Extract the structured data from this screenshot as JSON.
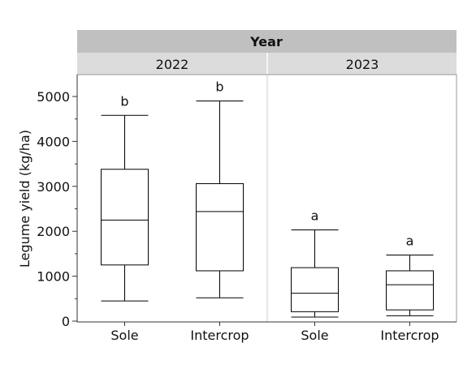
{
  "chart_data": {
    "type": "box",
    "facet_title": "Year",
    "ylabel": "Legume yield (kg/ha)",
    "ylim": [
      0,
      5500
    ],
    "yticks": [
      0,
      1000,
      2000,
      3000,
      4000,
      5000
    ],
    "categories": [
      "Sole",
      "Intercrop"
    ],
    "panels": [
      {
        "label": "2022",
        "boxes": [
          {
            "category": "Sole",
            "min": 450,
            "q1": 1250,
            "median": 2250,
            "q3": 3380,
            "max": 4580,
            "letter": "b"
          },
          {
            "category": "Intercrop",
            "min": 520,
            "q1": 1120,
            "median": 2440,
            "q3": 3060,
            "max": 4900,
            "letter": "b"
          }
        ]
      },
      {
        "label": "2023",
        "boxes": [
          {
            "category": "Sole",
            "min": 90,
            "q1": 210,
            "median": 620,
            "q3": 1190,
            "max": 2030,
            "letter": "a"
          },
          {
            "category": "Intercrop",
            "min": 120,
            "q1": 250,
            "median": 810,
            "q3": 1120,
            "max": 1470,
            "letter": "a"
          }
        ]
      }
    ]
  }
}
